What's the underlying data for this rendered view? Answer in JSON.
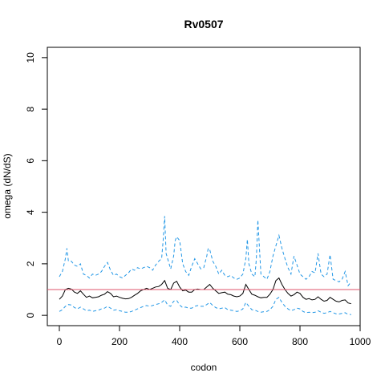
{
  "chart_data": {
    "type": "line",
    "title": "Rv0507",
    "xlabel": "codon",
    "ylabel": "omega (dN/dS)",
    "xlim": [
      -40,
      1000
    ],
    "ylim": [
      -0.4,
      10.4
    ],
    "x_ticks": [
      0,
      200,
      400,
      600,
      800,
      1000
    ],
    "y_ticks": [
      0,
      2,
      4,
      6,
      8,
      10
    ],
    "grid": false,
    "reference_line": {
      "y": 1.0,
      "color": "#df536b"
    },
    "series": [
      {
        "style": "solid",
        "color": "#000000",
        "x": [
          0,
          10,
          20,
          30,
          40,
          50,
          60,
          70,
          80,
          90,
          100,
          110,
          120,
          130,
          140,
          150,
          160,
          170,
          180,
          190,
          200,
          210,
          220,
          230,
          240,
          250,
          260,
          270,
          280,
          290,
          300,
          310,
          320,
          330,
          340,
          350,
          360,
          370,
          380,
          390,
          400,
          410,
          420,
          430,
          440,
          450,
          460,
          470,
          480,
          490,
          500,
          510,
          520,
          530,
          540,
          550,
          560,
          570,
          580,
          590,
          600,
          610,
          620,
          630,
          640,
          650,
          660,
          670,
          680,
          690,
          700,
          710,
          720,
          730,
          740,
          750,
          760,
          770,
          780,
          790,
          800,
          810,
          820,
          830,
          840,
          850,
          860,
          870,
          880,
          890,
          900,
          910,
          920,
          930,
          940,
          950,
          960,
          970
        ],
        "values": [
          0.62,
          0.75,
          1.0,
          1.05,
          1.02,
          0.9,
          0.85,
          0.95,
          0.82,
          0.7,
          0.75,
          0.68,
          0.7,
          0.72,
          0.78,
          0.82,
          0.92,
          0.85,
          0.72,
          0.75,
          0.7,
          0.66,
          0.64,
          0.65,
          0.7,
          0.78,
          0.85,
          0.95,
          1.0,
          1.05,
          1.0,
          1.05,
          1.1,
          1.12,
          1.2,
          1.35,
          1.05,
          1.0,
          1.25,
          1.32,
          1.1,
          0.95,
          0.98,
          0.9,
          0.9,
          1.0,
          1.02,
          1.0,
          1.0,
          1.1,
          1.2,
          1.05,
          0.95,
          0.85,
          0.88,
          0.9,
          0.82,
          0.8,
          0.75,
          0.72,
          0.75,
          0.85,
          1.2,
          1.0,
          0.82,
          0.78,
          0.72,
          0.68,
          0.7,
          0.7,
          0.82,
          1.0,
          1.35,
          1.45,
          1.2,
          1.0,
          0.85,
          0.75,
          0.8,
          0.9,
          0.85,
          0.7,
          0.62,
          0.65,
          0.6,
          0.62,
          0.72,
          0.62,
          0.55,
          0.58,
          0.7,
          0.62,
          0.55,
          0.52,
          0.58,
          0.6,
          0.48,
          0.45
        ]
      },
      {
        "style": "dashed",
        "color": "#2297e6",
        "x": [
          0,
          10,
          20,
          25,
          30,
          40,
          50,
          60,
          70,
          80,
          90,
          100,
          110,
          120,
          130,
          140,
          150,
          160,
          170,
          180,
          190,
          200,
          210,
          220,
          230,
          240,
          250,
          260,
          270,
          280,
          290,
          300,
          310,
          320,
          330,
          340,
          345,
          350,
          355,
          360,
          370,
          380,
          385,
          390,
          400,
          410,
          420,
          430,
          440,
          450,
          460,
          470,
          480,
          490,
          495,
          500,
          510,
          520,
          530,
          540,
          550,
          560,
          570,
          580,
          590,
          600,
          610,
          620,
          625,
          630,
          640,
          650,
          655,
          660,
          670,
          680,
          690,
          700,
          710,
          720,
          730,
          740,
          750,
          760,
          770,
          780,
          790,
          800,
          810,
          820,
          830,
          840,
          850,
          860,
          870,
          880,
          890,
          900,
          910,
          920,
          930,
          940,
          950,
          960,
          970
        ],
        "values": [
          1.5,
          1.7,
          2.2,
          2.6,
          2.1,
          2.1,
          1.95,
          1.9,
          2.0,
          1.6,
          1.55,
          1.45,
          1.6,
          1.55,
          1.6,
          1.7,
          1.9,
          2.05,
          1.75,
          1.55,
          1.6,
          1.5,
          1.45,
          1.55,
          1.65,
          1.8,
          1.75,
          1.85,
          1.8,
          1.85,
          1.9,
          1.85,
          1.75,
          1.95,
          2.1,
          2.2,
          2.9,
          3.85,
          2.4,
          2.2,
          1.8,
          2.3,
          2.9,
          3.05,
          2.9,
          2.0,
          1.7,
          1.55,
          1.9,
          2.2,
          2.0,
          1.8,
          1.85,
          2.3,
          2.6,
          2.55,
          2.1,
          1.9,
          1.6,
          1.75,
          1.55,
          1.5,
          1.55,
          1.45,
          1.4,
          1.45,
          1.6,
          2.2,
          2.95,
          2.0,
          1.6,
          1.5,
          2.2,
          3.7,
          1.6,
          1.5,
          1.4,
          1.7,
          2.3,
          2.7,
          3.1,
          2.6,
          2.2,
          1.85,
          1.6,
          2.3,
          1.95,
          1.6,
          1.5,
          1.4,
          1.5,
          1.7,
          1.65,
          2.4,
          1.6,
          1.5,
          1.6,
          2.35,
          1.4,
          1.35,
          1.3,
          1.4,
          1.7,
          1.15,
          1.3
        ]
      },
      {
        "style": "dashed",
        "color": "#2297e6",
        "x": [
          0,
          10,
          20,
          30,
          40,
          50,
          60,
          70,
          80,
          90,
          100,
          110,
          120,
          130,
          140,
          150,
          160,
          170,
          180,
          190,
          200,
          210,
          220,
          230,
          240,
          250,
          260,
          270,
          280,
          290,
          300,
          310,
          320,
          330,
          340,
          350,
          360,
          370,
          380,
          390,
          400,
          410,
          420,
          430,
          440,
          450,
          460,
          470,
          480,
          490,
          500,
          510,
          520,
          530,
          540,
          550,
          560,
          570,
          580,
          590,
          600,
          610,
          620,
          630,
          640,
          650,
          660,
          670,
          680,
          690,
          700,
          710,
          720,
          730,
          740,
          750,
          760,
          770,
          780,
          790,
          800,
          810,
          820,
          830,
          840,
          850,
          860,
          870,
          880,
          890,
          900,
          910,
          920,
          930,
          940,
          950,
          960,
          970
        ],
        "values": [
          0.15,
          0.22,
          0.35,
          0.42,
          0.4,
          0.3,
          0.25,
          0.32,
          0.25,
          0.18,
          0.2,
          0.15,
          0.18,
          0.2,
          0.25,
          0.28,
          0.35,
          0.28,
          0.2,
          0.22,
          0.18,
          0.15,
          0.12,
          0.12,
          0.15,
          0.2,
          0.25,
          0.3,
          0.35,
          0.38,
          0.35,
          0.38,
          0.42,
          0.45,
          0.5,
          0.6,
          0.4,
          0.35,
          0.55,
          0.58,
          0.4,
          0.3,
          0.32,
          0.28,
          0.28,
          0.35,
          0.38,
          0.35,
          0.35,
          0.42,
          0.5,
          0.38,
          0.3,
          0.25,
          0.28,
          0.3,
          0.22,
          0.2,
          0.18,
          0.15,
          0.18,
          0.25,
          0.5,
          0.35,
          0.22,
          0.2,
          0.15,
          0.12,
          0.14,
          0.15,
          0.22,
          0.35,
          0.62,
          0.7,
          0.5,
          0.35,
          0.25,
          0.18,
          0.22,
          0.28,
          0.25,
          0.15,
          0.1,
          0.12,
          0.1,
          0.12,
          0.18,
          0.12,
          0.08,
          0.1,
          0.15,
          0.1,
          0.06,
          0.05,
          0.08,
          0.1,
          0.04,
          0.03
        ]
      }
    ]
  }
}
